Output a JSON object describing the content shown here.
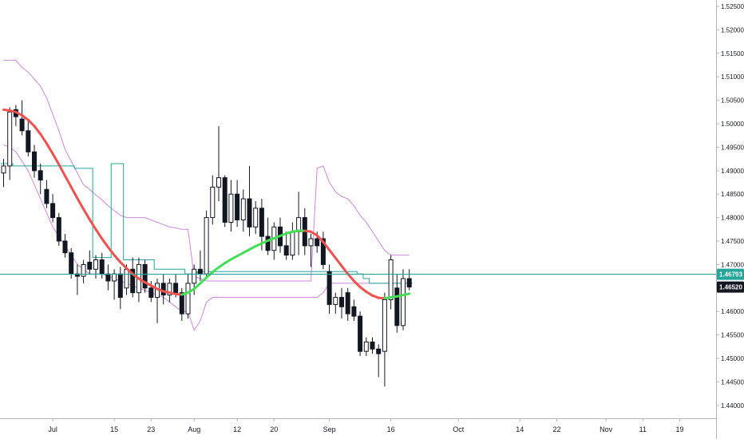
{
  "chart_data": {
    "type": "candlestick",
    "title": "",
    "xlabel": "",
    "ylabel": "",
    "ylim": [
      1.435,
      1.527
    ],
    "y_ticks": [
      "1.52500",
      "1.52000",
      "1.51500",
      "1.51000",
      "1.50500",
      "1.50000",
      "1.49500",
      "1.49000",
      "1.48500",
      "1.48000",
      "1.47500",
      "1.47000",
      "1.46500",
      "1.46000",
      "1.45500",
      "1.45000",
      "1.44500",
      "1.44000"
    ],
    "x_ticks": [
      {
        "label": "Jul",
        "bar": 8
      },
      {
        "label": "15",
        "bar": 18
      },
      {
        "label": "23",
        "bar": 24
      },
      {
        "label": "Aug",
        "bar": 31
      },
      {
        "label": "12",
        "bar": 38
      },
      {
        "label": "20",
        "bar": 44
      },
      {
        "label": "Sep",
        "bar": 53
      },
      {
        "label": "16",
        "bar": 63
      },
      {
        "label": "Oct",
        "bar": 74
      },
      {
        "label": "14",
        "bar": 84
      },
      {
        "label": "22",
        "bar": 90
      },
      {
        "label": "Nov",
        "bar": 98
      },
      {
        "label": "11",
        "bar": 104
      },
      {
        "label": "19",
        "bar": 110
      }
    ],
    "price_markers": [
      {
        "value": 1.46793,
        "label": "1.46793",
        "color": "#26a69a",
        "line": true
      },
      {
        "value": 1.4652,
        "label": "1.46520",
        "color": "#131722",
        "line": false
      }
    ],
    "candles": [
      [
        1.4895,
        1.4925,
        1.4865,
        1.491
      ],
      [
        1.491,
        1.5035,
        1.488,
        1.5025
      ],
      [
        1.503,
        1.504,
        1.4995,
        1.5015
      ],
      [
        1.501,
        1.505,
        1.4975,
        1.4985
      ],
      [
        1.4985,
        1.5005,
        1.493,
        1.494
      ],
      [
        1.494,
        1.4955,
        1.4885,
        1.49
      ],
      [
        1.49,
        1.4915,
        1.485,
        1.488
      ],
      [
        1.486,
        1.488,
        1.482,
        1.483
      ],
      [
        1.483,
        1.485,
        1.479,
        1.48
      ],
      [
        1.48,
        1.481,
        1.474,
        1.475
      ],
      [
        1.475,
        1.4765,
        1.4715,
        1.4725
      ],
      [
        1.4725,
        1.4735,
        1.467,
        1.468
      ],
      [
        1.468,
        1.47,
        1.4635,
        1.4675
      ],
      [
        1.4675,
        1.471,
        1.466,
        1.47
      ],
      [
        1.4705,
        1.473,
        1.468,
        1.469
      ],
      [
        1.469,
        1.472,
        1.467,
        1.471
      ],
      [
        1.471,
        1.4725,
        1.467,
        1.468
      ],
      [
        1.468,
        1.47,
        1.4645,
        1.4665
      ],
      [
        1.4665,
        1.469,
        1.4625,
        1.468
      ],
      [
        1.468,
        1.4695,
        1.4605,
        1.463
      ],
      [
        1.465,
        1.47,
        1.4635,
        1.469
      ],
      [
        1.469,
        1.4715,
        1.463,
        1.464
      ],
      [
        1.464,
        1.4715,
        1.462,
        1.47
      ],
      [
        1.47,
        1.471,
        1.464,
        1.465
      ],
      [
        1.465,
        1.4665,
        1.462,
        1.463
      ],
      [
        1.463,
        1.467,
        1.4575,
        1.466
      ],
      [
        1.466,
        1.468,
        1.4615,
        1.4635
      ],
      [
        1.4635,
        1.467,
        1.462,
        1.466
      ],
      [
        1.466,
        1.468,
        1.463,
        1.464
      ],
      [
        1.464,
        1.465,
        1.458,
        1.4595
      ],
      [
        1.4595,
        1.468,
        1.4585,
        1.466
      ],
      [
        1.466,
        1.47,
        1.4635,
        1.469
      ],
      [
        1.469,
        1.473,
        1.4665,
        1.468
      ],
      [
        1.468,
        1.4815,
        1.467,
        1.48
      ],
      [
        1.48,
        1.489,
        1.4785,
        1.4865
      ],
      [
        1.4865,
        1.4995,
        1.4835,
        1.4885
      ],
      [
        1.4885,
        1.489,
        1.478,
        1.479
      ],
      [
        1.479,
        1.488,
        1.477,
        1.485
      ],
      [
        1.485,
        1.488,
        1.478,
        1.4795
      ],
      [
        1.4795,
        1.486,
        1.477,
        1.484
      ],
      [
        1.484,
        1.491,
        1.476,
        1.478
      ],
      [
        1.478,
        1.4835,
        1.4765,
        1.482
      ],
      [
        1.482,
        1.484,
        1.473,
        1.476
      ],
      [
        1.476,
        1.48,
        1.472,
        1.473
      ],
      [
        1.473,
        1.479,
        1.471,
        1.478
      ],
      [
        1.478,
        1.48,
        1.4725,
        1.474
      ],
      [
        1.474,
        1.477,
        1.471,
        1.472
      ],
      [
        1.472,
        1.479,
        1.471,
        1.477
      ],
      [
        1.477,
        1.4855,
        1.472,
        1.48
      ],
      [
        1.48,
        1.482,
        1.472,
        1.474
      ],
      [
        1.474,
        1.4765,
        1.4695,
        1.4755
      ],
      [
        1.4755,
        1.477,
        1.4725,
        1.474
      ],
      [
        1.4755,
        1.477,
        1.469,
        1.47
      ],
      [
        1.4685,
        1.47,
        1.4595,
        1.4615
      ],
      [
        1.4615,
        1.464,
        1.4595,
        1.463
      ],
      [
        1.463,
        1.465,
        1.4585,
        1.461
      ],
      [
        1.464,
        1.465,
        1.458,
        1.4595
      ],
      [
        1.461,
        1.4625,
        1.458,
        1.459
      ],
      [
        1.459,
        1.46,
        1.4505,
        1.4515
      ],
      [
        1.4515,
        1.4545,
        1.4505,
        1.4535
      ],
      [
        1.4535,
        1.4545,
        1.451,
        1.452
      ],
      [
        1.452,
        1.453,
        1.446,
        1.451
      ],
      [
        1.4515,
        1.464,
        1.444,
        1.4625
      ],
      [
        1.4625,
        1.472,
        1.4605,
        1.471
      ],
      [
        1.465,
        1.468,
        1.4555,
        1.457
      ],
      [
        1.457,
        1.469,
        1.456,
        1.467
      ],
      [
        1.467,
        1.469,
        1.4645,
        1.4652
      ]
    ],
    "series": [
      {
        "kind": "moving-average",
        "style": "colored by slope",
        "color_down": "#ef5350",
        "color_up": "#44dd55",
        "values": [
          1.503,
          1.5028,
          1.5025,
          1.5018,
          1.5008,
          1.4995,
          1.4978,
          1.4958,
          1.4936,
          1.4913,
          1.4889,
          1.4865,
          1.4841,
          1.4818,
          1.4796,
          1.4775,
          1.4755,
          1.4737,
          1.472,
          1.4705,
          1.4692,
          1.468,
          1.467,
          1.4662,
          1.4655,
          1.4648,
          1.4643,
          1.464,
          1.4637,
          1.4636,
          1.464,
          1.4648,
          1.466,
          1.4672,
          1.4684,
          1.4694,
          1.4703,
          1.4711,
          1.4718,
          1.4725,
          1.4732,
          1.4739,
          1.4745,
          1.4751,
          1.4756,
          1.4761,
          1.4766,
          1.477,
          1.4772,
          1.4772,
          1.477,
          1.4762,
          1.4748,
          1.4731,
          1.4714,
          1.4697,
          1.468,
          1.4665,
          1.4652,
          1.4642,
          1.4634,
          1.4629,
          1.4628,
          1.463,
          1.4632,
          1.4635,
          1.4638
        ]
      },
      {
        "kind": "upper-band",
        "color": "#cc88dd",
        "values": [
          1.5135,
          1.5135,
          1.5135,
          1.512,
          1.511,
          1.5095,
          1.508,
          1.5055,
          1.502,
          1.4985,
          1.4945,
          1.492,
          1.4895,
          1.487,
          1.486,
          1.4848,
          1.4838,
          1.4825,
          1.4815,
          1.4805,
          1.48,
          1.48,
          1.48,
          1.48,
          1.4795,
          1.479,
          1.4785,
          1.478,
          1.4778,
          1.4775,
          1.4775,
          1.4675,
          1.467,
          1.4665,
          1.4665,
          1.4665,
          1.4665,
          1.4665,
          1.4665,
          1.4665,
          1.4665,
          1.4665,
          1.4665,
          1.4665,
          1.4665,
          1.4665,
          1.4665,
          1.4665,
          1.4665,
          1.4665,
          1.4665,
          1.4905,
          1.491,
          1.4875,
          1.4855,
          1.4845,
          1.484,
          1.4825,
          1.4805,
          1.479,
          1.477,
          1.475,
          1.473,
          1.472,
          1.472,
          1.472,
          1.472
        ]
      },
      {
        "kind": "lower-band",
        "color": "#cc88dd",
        "values": [
          1.4955,
          1.495,
          1.494,
          1.492,
          1.49,
          1.487,
          1.484,
          1.481,
          1.478,
          1.476,
          1.474,
          1.472,
          1.47,
          1.469,
          1.468,
          1.468,
          1.468,
          1.4675,
          1.467,
          1.4665,
          1.466,
          1.4655,
          1.465,
          1.4645,
          1.464,
          1.4635,
          1.463,
          1.462,
          1.461,
          1.46,
          1.46,
          1.456,
          1.458,
          1.462,
          1.463,
          1.463,
          1.463,
          1.463,
          1.463,
          1.463,
          1.463,
          1.463,
          1.463,
          1.463,
          1.463,
          1.463,
          1.463,
          1.463,
          1.463,
          1.463,
          1.463,
          1.463,
          1.464,
          1.466,
          1.466,
          1.466,
          1.466,
          1.466,
          1.466,
          1.466,
          1.466,
          1.466,
          1.466,
          1.466,
          1.466,
          1.466,
          1.466
        ]
      },
      {
        "kind": "step-line",
        "color": "#26a69a",
        "values": [
          1.4915,
          1.4915,
          1.491,
          1.491,
          1.491,
          1.491,
          1.491,
          1.491,
          1.491,
          1.491,
          1.491,
          1.491,
          1.4905,
          1.4905,
          1.4905,
          1.4715,
          1.4715,
          1.4715,
          1.4915,
          1.4915,
          1.471,
          1.471,
          1.471,
          1.471,
          1.471,
          1.469,
          1.469,
          1.469,
          1.469,
          1.469,
          1.468,
          1.468,
          1.4685,
          1.4685,
          1.4685,
          1.4685,
          1.4685,
          1.4685,
          1.4685,
          1.4685,
          1.4685,
          1.4685,
          1.4685,
          1.4685,
          1.4685,
          1.4685,
          1.4685,
          1.4685,
          1.4685,
          1.4685,
          1.4685,
          1.4685,
          1.4685,
          1.4685,
          1.4685,
          1.4685,
          1.4685,
          1.4685,
          1.468,
          1.467,
          1.466,
          1.466,
          1.466,
          1.466,
          1.466,
          1.466,
          1.466
        ]
      }
    ]
  }
}
